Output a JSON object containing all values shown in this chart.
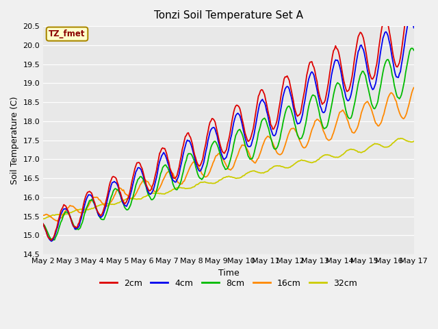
{
  "title": "Tonzi Soil Temperature Set A",
  "xlabel": "Time",
  "ylabel": "Soil Temperature (C)",
  "ylim": [
    14.5,
    20.5
  ],
  "yticks": [
    14.5,
    15.0,
    15.5,
    16.0,
    16.5,
    17.0,
    17.5,
    18.0,
    18.5,
    19.0,
    19.5,
    20.0,
    20.5
  ],
  "legend_label": "TZ_fmet",
  "series_labels": [
    "2cm",
    "4cm",
    "8cm",
    "16cm",
    "32cm"
  ],
  "series_colors": [
    "#dd0000",
    "#0000ee",
    "#00bb00",
    "#ff8800",
    "#cccc00"
  ],
  "x_tick_labels": [
    "May 2",
    "May 3",
    "May 4",
    "May 5",
    "May 6",
    "May 7",
    "May 8",
    "May 9",
    "May 10",
    "May 11",
    "May 12",
    "May 13",
    "May 14",
    "May 15",
    "May 16",
    "May 17"
  ],
  "fig_facecolor": "#f0f0f0",
  "ax_facecolor": "#e8e8e8",
  "grid_color": "#ffffff"
}
